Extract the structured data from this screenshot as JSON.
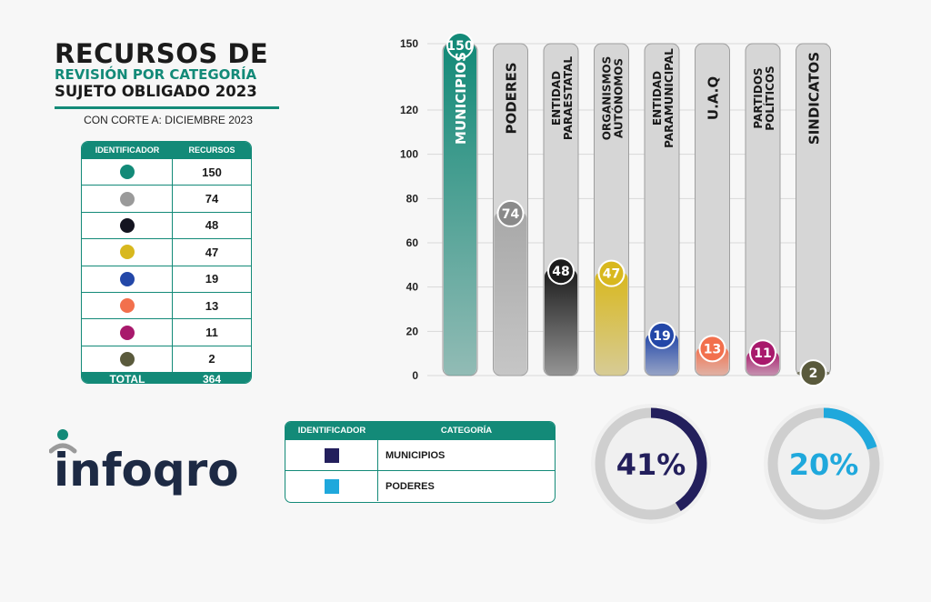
{
  "title": {
    "line1": "RECURSOS DE",
    "line2": "REVISIÓN POR CATEGORÍA",
    "line3": "SUJETO OBLIGADO 2023",
    "cutoff": "CON CORTE A: DICIEMBRE 2023"
  },
  "table": {
    "col1": "IDENTIFICADOR",
    "col2": "RECURSOS",
    "rows": [
      {
        "color": "#138a78",
        "value": "150"
      },
      {
        "color": "#9a9a9a",
        "value": "74"
      },
      {
        "color": "#141420",
        "value": "48"
      },
      {
        "color": "#d8b81e",
        "value": "47"
      },
      {
        "color": "#2347a8",
        "value": "19"
      },
      {
        "color": "#f2704d",
        "value": "13"
      },
      {
        "color": "#a8196c",
        "value": "11"
      },
      {
        "color": "#5a5a3c",
        "value": "2"
      }
    ],
    "total_label": "TOTAL",
    "total_value": "364"
  },
  "chart_data": {
    "type": "bar",
    "categories": [
      "MUNICIPIOS",
      "PODERES",
      "ENTIDAD PARAESTATAL",
      "ORGANISMOS AUTÓNOMOS",
      "ENTIDAD PARAMUNICIPAL",
      "U.A.Q",
      "PARTIDOS POLÍTICOS",
      "SINDICATOS"
    ],
    "category_lines": [
      [
        "MUNICIPIOS"
      ],
      [
        "PODERES"
      ],
      [
        "ENTIDAD",
        "PARAESTATAL"
      ],
      [
        "ORGANISMOS",
        "AUTÓNOMOS"
      ],
      [
        "ENTIDAD",
        "PARAMUNICIPAL"
      ],
      [
        "U.A.Q"
      ],
      [
        "PARTIDOS",
        "POLÍTICOS"
      ],
      [
        "SINDICATOS"
      ]
    ],
    "values": [
      150,
      74,
      48,
      47,
      19,
      13,
      11,
      2
    ],
    "colors": [
      "#138a78",
      "#a8a8a8",
      "#1c1c1c",
      "#d8b81e",
      "#2347a8",
      "#f2704d",
      "#a8196c",
      "#5a5a3c"
    ],
    "yticks": [
      0,
      20,
      40,
      60,
      80,
      100,
      120,
      150
    ],
    "ylim": [
      0,
      150
    ],
    "grid": true
  },
  "logo": {
    "text": "infoqro"
  },
  "legend": {
    "col1": "IDENTIFICADOR",
    "col2": "CATEGORÍA",
    "rows": [
      {
        "color": "#231f5c",
        "label": "MUNICIPIOS"
      },
      {
        "color": "#1fa8dc",
        "label": "PODERES"
      }
    ]
  },
  "rings": [
    {
      "label": "41%",
      "value": 41,
      "color": "#231f5c"
    },
    {
      "label": "20%",
      "value": 20,
      "color": "#1fa8dc"
    }
  ]
}
